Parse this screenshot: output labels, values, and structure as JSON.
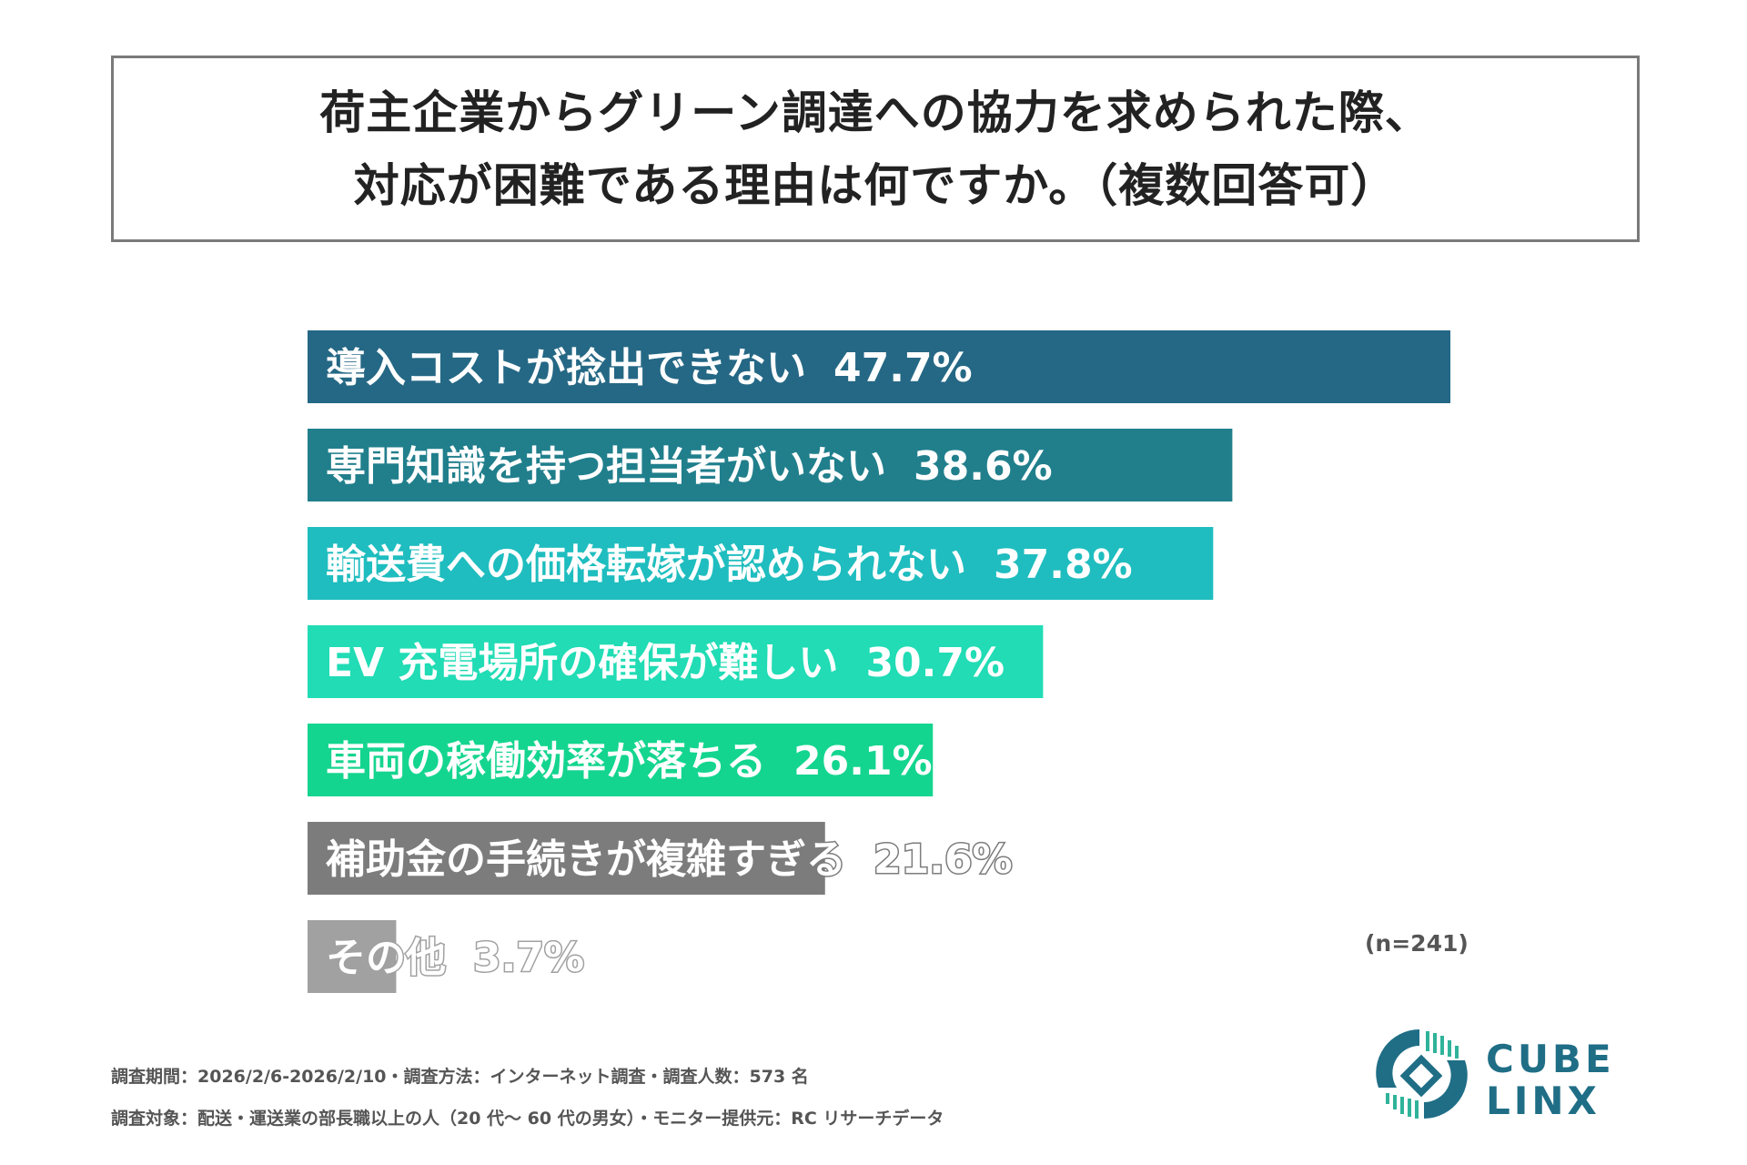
{
  "title": {
    "line1": "荷主企業からグリーン調達への協力を求められた際、",
    "line2": "対応が困難である理由は何ですか。（複数回答可）"
  },
  "chart_data": {
    "type": "bar",
    "orientation": "horizontal",
    "categories": [
      "導入コストが捻出できない",
      "専門知識を持つ担当者がいない",
      "輸送費への価格転嫁が認められない",
      "EV 充電場所の確保が難しい",
      "車両の稼働効率が落ちる",
      "補助金の手続きが複雑すぎる",
      "その他"
    ],
    "values": [
      47.7,
      38.6,
      37.8,
      30.7,
      26.1,
      21.6,
      3.7
    ],
    "value_labels": [
      "47.7%",
      "38.6%",
      "37.8%",
      "30.7%",
      "26.1%",
      "21.6%",
      "3.7%"
    ],
    "colors": [
      "#256885",
      "#217f8c",
      "#1fbdbf",
      "#21dcb5",
      "#14d58f",
      "#7c7c7c",
      "#a1a1a1"
    ],
    "unit": "%",
    "xlim": [
      0,
      47.7
    ],
    "grid": false,
    "legend": "none"
  },
  "sample_note": "(n=241)",
  "footer": {
    "line1": "調査期間：2026/2/6-2026/2/10・調査方法：インターネット調査・調査人数：573 名",
    "line2": "調査対象：配送・運送業の部長職以上の人（20 代～ 60 代の男女）・モニター提供元：RC リサーチデータ"
  },
  "logo": {
    "word1": "CUBE",
    "word2": "LINX",
    "color": "#1f6e86",
    "accent": "#2fb39a"
  }
}
